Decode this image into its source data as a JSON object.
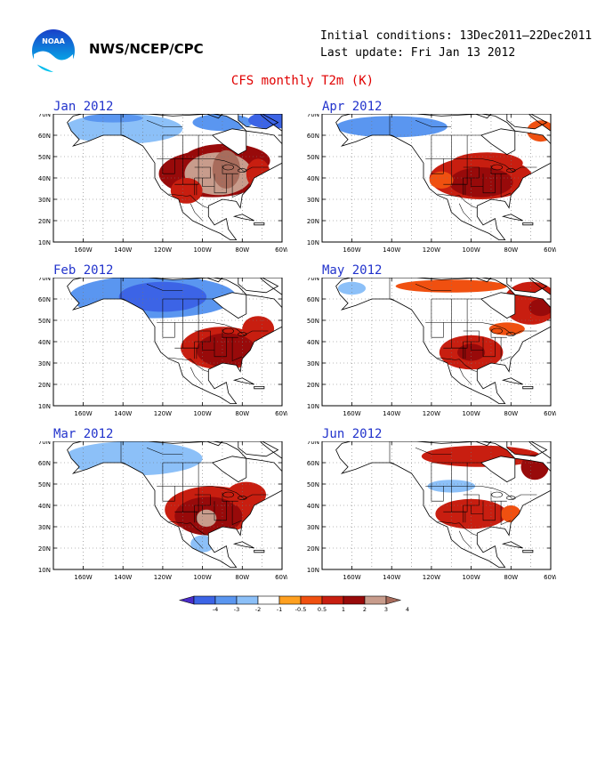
{
  "header": {
    "logo_text": "NOAA",
    "org": "NWS/NCEP/CPC",
    "initial_conditions": "Initial conditions: 13Dec2011–22Dec2011",
    "last_update": "Last update: Fri Jan 13 2012"
  },
  "title": "CFS monthly T2m (K)",
  "axes": {
    "lat_labels": [
      "70N",
      "60N",
      "50N",
      "40N",
      "30N",
      "20N",
      "10N"
    ],
    "lon_labels": [
      "160W",
      "140W",
      "120W",
      "100W",
      "80W",
      "60W"
    ]
  },
  "panels": [
    {
      "title": "Jan 2012",
      "blobs": [
        {
          "lon": -140,
          "lat": 63,
          "rx": 30,
          "ry": 7,
          "c": 3
        },
        {
          "lon": -90,
          "lat": 66,
          "rx": 15,
          "ry": 4,
          "c": 2
        },
        {
          "lon": -65,
          "lat": 67,
          "rx": 12,
          "ry": 4,
          "c": 1
        },
        {
          "lon": -145,
          "lat": 68,
          "rx": 15,
          "ry": 2,
          "c": 2
        },
        {
          "lon": -95,
          "lat": 42,
          "rx": 27,
          "ry": 11,
          "c": 7
        },
        {
          "lon": -88,
          "lat": 48,
          "rx": 22,
          "ry": 8,
          "c": 7
        },
        {
          "lon": -92,
          "lat": 42,
          "rx": 17,
          "ry": 10,
          "c": 8
        },
        {
          "lon": -88,
          "lat": 44,
          "rx": 7,
          "ry": 9,
          "c": 9
        },
        {
          "lon": -108,
          "lat": 34,
          "rx": 8,
          "ry": 6,
          "c": 6
        },
        {
          "lon": -72,
          "lat": 42,
          "rx": 6,
          "ry": 7,
          "c": 6
        }
      ]
    },
    {
      "title": "Apr 2012",
      "blobs": [
        {
          "lon": -140,
          "lat": 64,
          "rx": 28,
          "ry": 5,
          "c": 2
        },
        {
          "lon": -95,
          "lat": 40,
          "rx": 26,
          "ry": 10,
          "c": 6
        },
        {
          "lon": -92,
          "lat": 47,
          "rx": 18,
          "ry": 5,
          "c": 6
        },
        {
          "lon": -95,
          "lat": 38,
          "rx": 16,
          "ry": 7,
          "c": 7
        },
        {
          "lon": -65,
          "lat": 62,
          "rx": 7,
          "ry": 5,
          "c": 5
        },
        {
          "lon": -115,
          "lat": 39,
          "rx": 6,
          "ry": 4,
          "c": 5
        }
      ]
    },
    {
      "title": "Feb 2012",
      "blobs": [
        {
          "lon": -125,
          "lat": 61,
          "rx": 42,
          "ry": 10,
          "c": 2
        },
        {
          "lon": -120,
          "lat": 61,
          "rx": 22,
          "ry": 7,
          "c": 1
        },
        {
          "lon": -90,
          "lat": 37,
          "rx": 21,
          "ry": 10,
          "c": 6
        },
        {
          "lon": -88,
          "lat": 36,
          "rx": 15,
          "ry": 8,
          "c": 7
        },
        {
          "lon": -72,
          "lat": 46,
          "rx": 8,
          "ry": 6,
          "c": 6
        }
      ]
    },
    {
      "title": "May 2012",
      "blobs": [
        {
          "lon": -110,
          "lat": 66,
          "rx": 28,
          "ry": 3,
          "c": 5
        },
        {
          "lon": -70,
          "lat": 58,
          "rx": 14,
          "ry": 10,
          "c": 6
        },
        {
          "lon": -65,
          "lat": 56,
          "rx": 6,
          "ry": 4,
          "c": 7
        },
        {
          "lon": -100,
          "lat": 35,
          "rx": 16,
          "ry": 8,
          "c": 6
        },
        {
          "lon": -100,
          "lat": 35,
          "rx": 7,
          "ry": 4,
          "c": 7
        },
        {
          "lon": -160,
          "lat": 65,
          "rx": 7,
          "ry": 3,
          "c": 3
        },
        {
          "lon": -82,
          "lat": 46,
          "rx": 9,
          "ry": 3,
          "c": 5
        }
      ]
    },
    {
      "title": "Mar 2012",
      "blobs": [
        {
          "lon": -135,
          "lat": 62,
          "rx": 35,
          "ry": 8,
          "c": 3
        },
        {
          "lon": -95,
          "lat": 38,
          "rx": 24,
          "ry": 11,
          "c": 6
        },
        {
          "lon": -97,
          "lat": 35,
          "rx": 17,
          "ry": 9,
          "c": 7
        },
        {
          "lon": -98,
          "lat": 34,
          "rx": 5,
          "ry": 4,
          "c": 8
        },
        {
          "lon": -78,
          "lat": 45,
          "rx": 10,
          "ry": 6,
          "c": 6
        },
        {
          "lon": -100,
          "lat": 22,
          "rx": 6,
          "ry": 4,
          "c": 3
        }
      ]
    },
    {
      "title": "Jun 2012",
      "blobs": [
        {
          "lon": -95,
          "lat": 63,
          "rx": 30,
          "ry": 5,
          "c": 6
        },
        {
          "lon": -68,
          "lat": 58,
          "rx": 7,
          "ry": 6,
          "c": 7
        },
        {
          "lon": -100,
          "lat": 36,
          "rx": 18,
          "ry": 7,
          "c": 6
        },
        {
          "lon": -110,
          "lat": 49,
          "rx": 12,
          "ry": 3,
          "c": 3
        },
        {
          "lon": -80,
          "lat": 36,
          "rx": 5,
          "ry": 4,
          "c": 5
        }
      ]
    }
  ],
  "colorbar": {
    "labels": [
      "-4",
      "-3",
      "-2",
      "-1",
      "-0.5",
      "0.5",
      "1",
      "2",
      "3",
      "4"
    ],
    "colors": [
      "#4a2cc8",
      "#3c64e6",
      "#5a96f0",
      "#8cc0f8",
      "#ffffff",
      "#ffa020",
      "#f05010",
      "#c81e10",
      "#980a0a",
      "#c89c8c",
      "#a86c5c"
    ]
  },
  "colors": {
    "ocean": "#ffffff",
    "land_neutral": "#ffffff",
    "title_red": "#e00000",
    "panel_title_blue": "#2233cc"
  }
}
